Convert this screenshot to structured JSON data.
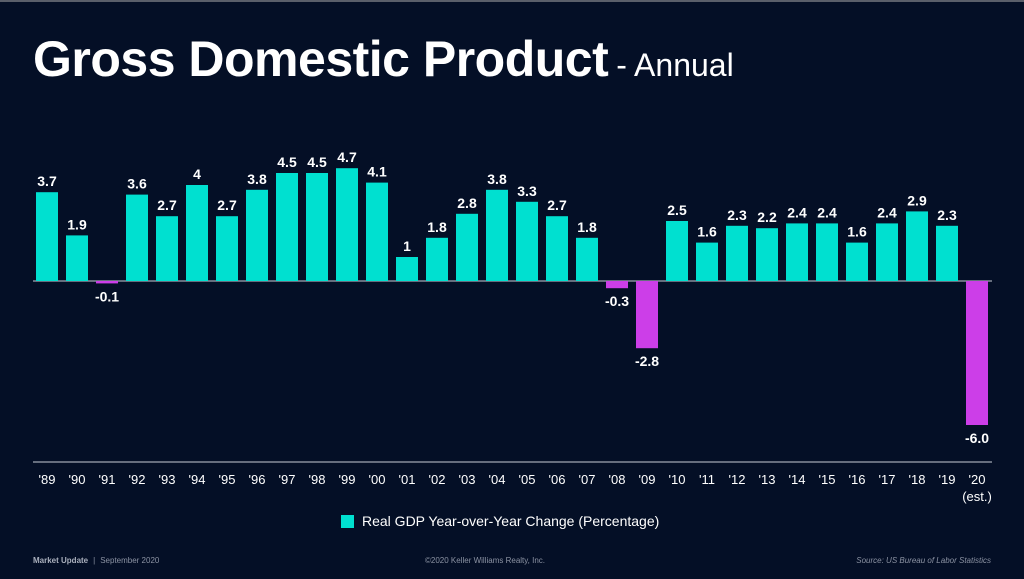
{
  "slide": {
    "title_main": "Gross Domestic Product",
    "title_sub": "- Annual",
    "footer_left_bold": "Market Update",
    "footer_left_sep": "|",
    "footer_left_date": "September 2020",
    "footer_center": "©2020 Keller Williams Realty, Inc.",
    "footer_right": "Source: US Bureau of Labor Statistics",
    "legend_label": "Real GDP Year-over-Year Change (Percentage)"
  },
  "colors": {
    "background": "#040f26",
    "positive_bar": "#00e0d0",
    "negative_bar": "#cc3ee8",
    "label_text": "#ffffff",
    "axis_line": "#c8cdd6"
  },
  "chart_data": {
    "type": "bar",
    "title": "Gross Domestic Product - Annual",
    "xlabel": "",
    "ylabel": "",
    "categories": [
      "'89",
      "'90",
      "'91",
      "'92",
      "'93",
      "'94",
      "'95",
      "'96",
      "'97",
      "'98",
      "'99",
      "'00",
      "'01",
      "'02",
      "'03",
      "'04",
      "'05",
      "'06",
      "'07",
      "'08",
      "'09",
      "'10",
      "'11",
      "'12",
      "'13",
      "'14",
      "'15",
      "'16",
      "'17",
      "'18",
      "'19",
      "'20"
    ],
    "category_sublabels": {
      "'20": "(est.)"
    },
    "series": [
      {
        "name": "Real GDP Year-over-Year Change (Percentage)",
        "values": [
          3.7,
          1.9,
          -0.1,
          3.6,
          2.7,
          4,
          2.7,
          3.8,
          4.5,
          4.5,
          4.7,
          4.1,
          1,
          1.8,
          2.8,
          3.8,
          3.3,
          2.7,
          1.8,
          -0.3,
          -2.8,
          2.5,
          1.6,
          2.3,
          2.2,
          2.4,
          2.4,
          1.6,
          2.4,
          2.9,
          2.3,
          -6.0
        ],
        "labels": [
          "3.7",
          "1.9",
          "-0.1",
          "3.6",
          "2.7",
          "4",
          "2.7",
          "3.8",
          "4.5",
          "4.5",
          "4.7",
          "4.1",
          "1",
          "1.8",
          "2.8",
          "3.8",
          "3.3",
          "2.7",
          "1.8",
          "-0.3",
          "-2.8",
          "2.5",
          "1.6",
          "2.3",
          "2.2",
          "2.4",
          "2.4",
          "1.6",
          "2.4",
          "2.9",
          "2.3",
          "-6.0"
        ]
      }
    ],
    "ylim": [
      -7.5,
      5.5
    ],
    "grid": false,
    "legend_position": "bottom-center"
  }
}
